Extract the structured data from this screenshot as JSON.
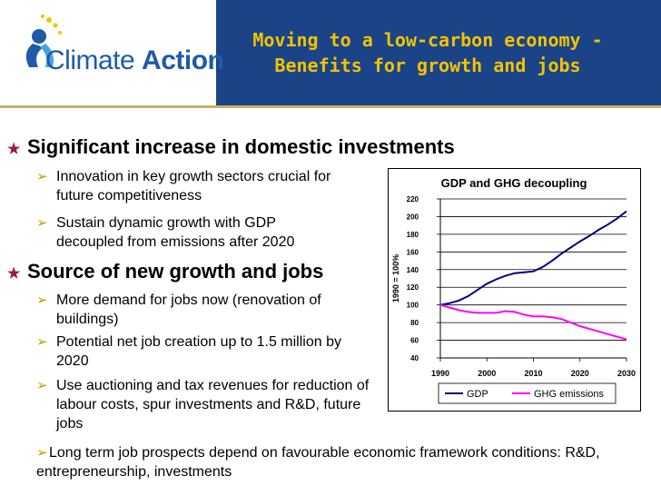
{
  "header": {
    "logo_prefix": "Climate ",
    "logo_bold": "Action",
    "title_line1": "Moving to a low-carbon economy -",
    "title_line2": "Benefits for growth and jobs",
    "banner_color": "#1a4388",
    "title_color": "#f3c300"
  },
  "content": {
    "heading1": "Significant increase in domestic investments",
    "sub1": [
      "Innovation in key growth sectors crucial for future competitiveness",
      "Sustain dynamic growth with GDP decoupled from emissions after 2020"
    ],
    "heading2": "Source of new growth and jobs",
    "sub2": [
      "More demand for jobs now (renovation of buildings)",
      "Potential net job creation up to 1.5 million by 2020",
      "Use auctioning and tax revenues for reduction of labour costs, spur investments and R&D, future jobs"
    ],
    "footer": "Long term job prospects depend on favourable economic framework conditions: R&D, entrepreneurship, investments"
  },
  "chart_data": {
    "type": "line",
    "title": "GDP and GHG decoupling",
    "ylabel": "1990 = 100%",
    "xlabel": "",
    "xlim": [
      1990,
      2030
    ],
    "ylim": [
      40,
      220
    ],
    "xticks": [
      1990,
      2000,
      2010,
      2020,
      2030
    ],
    "yticks": [
      40,
      60,
      80,
      100,
      120,
      140,
      160,
      180,
      200,
      220
    ],
    "legend_position": "bottom",
    "series": [
      {
        "name": "GDP",
        "color": "#000080",
        "x": [
          1990,
          1992,
          1994,
          1996,
          1998,
          2000,
          2002,
          2004,
          2006,
          2008,
          2010,
          2012,
          2014,
          2016,
          2018,
          2020,
          2022,
          2024,
          2026,
          2028,
          2030
        ],
        "y": [
          100,
          102,
          105,
          110,
          117,
          124,
          129,
          133,
          136,
          137,
          138,
          143,
          150,
          158,
          165,
          172,
          178,
          185,
          191,
          198,
          206
        ]
      },
      {
        "name": "GHG emissions",
        "color": "#ff00ff",
        "x": [
          1990,
          1992,
          1994,
          1996,
          1998,
          2000,
          2002,
          2004,
          2006,
          2008,
          2010,
          2012,
          2014,
          2016,
          2018,
          2020,
          2022,
          2024,
          2026,
          2028,
          2030
        ],
        "y": [
          100,
          97,
          94,
          92,
          91,
          91,
          91,
          93,
          92,
          89,
          87,
          87,
          86,
          84,
          80,
          76,
          73,
          70,
          67,
          64,
          61
        ]
      }
    ]
  }
}
